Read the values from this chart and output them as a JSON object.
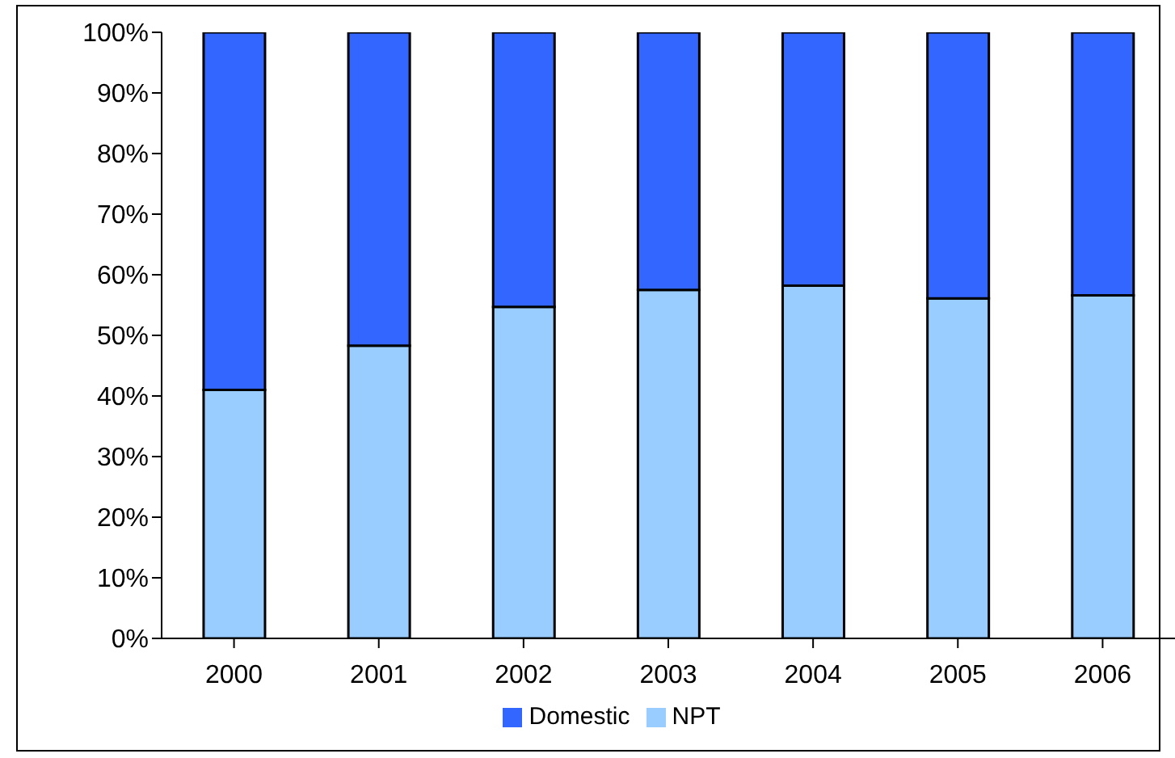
{
  "chart_data": {
    "type": "bar",
    "stacked": true,
    "categories": [
      "2000",
      "2001",
      "2002",
      "2003",
      "2004",
      "2005",
      "2006"
    ],
    "series": [
      {
        "name": "NPT",
        "color": "#99ccff",
        "values": [
          41,
          48.3,
          54.7,
          57.5,
          58.2,
          56.1,
          56.6
        ]
      },
      {
        "name": "Domestic",
        "color": "#3366ff",
        "values": [
          59,
          51.7,
          45.3,
          42.5,
          41.8,
          43.9,
          43.4
        ]
      }
    ],
    "ylim": [
      0,
      100
    ],
    "yticks": [
      {
        "value": 0,
        "label": "0%"
      },
      {
        "value": 10,
        "label": "10%"
      },
      {
        "value": 20,
        "label": "20%"
      },
      {
        "value": 30,
        "label": "30%"
      },
      {
        "value": 40,
        "label": "40%"
      },
      {
        "value": 50,
        "label": "50%"
      },
      {
        "value": 60,
        "label": "60%"
      },
      {
        "value": 70,
        "label": "70%"
      },
      {
        "value": 80,
        "label": "80%"
      },
      {
        "value": 90,
        "label": "90%"
      },
      {
        "value": 100,
        "label": "100%"
      }
    ],
    "grid": false,
    "legend": "bottom"
  }
}
